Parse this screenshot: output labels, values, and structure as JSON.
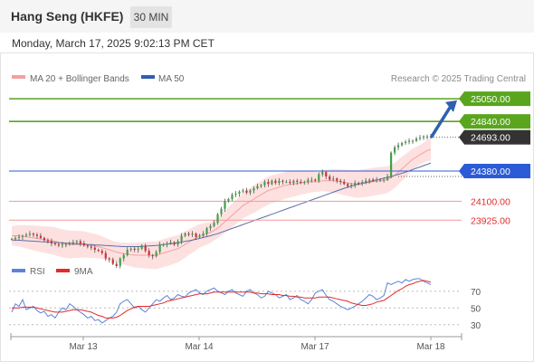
{
  "header": {
    "title": "Hang Seng (HKFE)",
    "timeframe": "30 MIN",
    "date": "Monday, March 17, 2025 9:02:13 PM CET"
  },
  "colors": {
    "support": "#f29a9a",
    "resistance": "#5aa51e",
    "pivot": "#2b5bd7",
    "price_tag": "#333333",
    "bollinger_fill": "#fde1e1",
    "ma20": "#f3a0a0",
    "ma50": "#5a6fa8",
    "candle_up": "#43a047",
    "candle_down": "#d32f2f",
    "rsi": "#5b84d9",
    "rsi_ma": "#e32b2b",
    "arrow": "#2e60ad"
  },
  "chart_data": [
    {
      "type": "candlestick",
      "title": "Hang Seng (HKFE)",
      "timeframe": "30 MIN",
      "legend": [
        {
          "name": "MA 20 + Bollinger Bands",
          "color": "#f3a0a0"
        },
        {
          "name": "MA 50",
          "color": "#2e60ad"
        }
      ],
      "credit": "Research © 2025 Trading Central",
      "x_ticks": [
        "Mar 13",
        "Mar 14",
        "Mar 17",
        "Mar 18"
      ],
      "ylim": [
        23600,
        25160
      ],
      "levels": [
        {
          "value": 25050,
          "label": "25050.00",
          "kind": "resistance"
        },
        {
          "value": 24840,
          "label": "24840.00",
          "kind": "resistance"
        },
        {
          "value": 24380,
          "label": "24380.00",
          "kind": "pivot"
        },
        {
          "value": 24100,
          "label": "24100.00",
          "kind": "support"
        },
        {
          "value": 23925,
          "label": "23925.00",
          "kind": "support"
        }
      ],
      "last_price": {
        "value": 24693,
        "label": "24693.00"
      },
      "forecast_arrow": {
        "from": 24700,
        "to": 25010,
        "direction": "up"
      },
      "close_series": [
        23750,
        23760,
        23770,
        23780,
        23790,
        23800,
        23790,
        23780,
        23760,
        23740,
        23730,
        23710,
        23700,
        23690,
        23700,
        23700,
        23710,
        23720,
        23730,
        23710,
        23690,
        23680,
        23670,
        23650,
        23640,
        23620,
        23570,
        23560,
        23520,
        23500,
        23570,
        23600,
        23650,
        23660,
        23650,
        23660,
        23690,
        23640,
        23600,
        23590,
        23630,
        23700,
        23700,
        23710,
        23720,
        23700,
        23730,
        23780,
        23800,
        23790,
        23800,
        23770,
        23780,
        23800,
        23850,
        23870,
        23900,
        23980,
        24030,
        24100,
        24120,
        24160,
        24170,
        24190,
        24200,
        24180,
        24200,
        24220,
        24240,
        24250,
        24280,
        24260,
        24290,
        24270,
        24290,
        24280,
        24280,
        24270,
        24290,
        24280,
        24270,
        24280,
        24300,
        24300,
        24290,
        24350,
        24370,
        24330,
        24300,
        24310,
        24290,
        24280,
        24260,
        24240,
        24250,
        24270,
        24260,
        24280,
        24290,
        24300,
        24290,
        24300,
        24300,
        24300,
        24330,
        24550,
        24600,
        24620,
        24640,
        24650,
        24660,
        24660,
        24680,
        24690,
        24700,
        24700,
        24693
      ],
      "ma20_series": [
        23780,
        23780,
        23780,
        23775,
        23770,
        23765,
        23760,
        23755,
        23750,
        23745,
        23740,
        23735,
        23730,
        23720,
        23710,
        23705,
        23700,
        23700,
        23700,
        23700,
        23700,
        23695,
        23690,
        23685,
        23680,
        23670,
        23660,
        23650,
        23640,
        23630,
        23620,
        23615,
        23610,
        23605,
        23600,
        23600,
        23600,
        23600,
        23600,
        23600,
        23600,
        23610,
        23620,
        23630,
        23640,
        23650,
        23660,
        23680,
        23700,
        23720,
        23740,
        23760,
        23780,
        23790,
        23800,
        23810,
        23830,
        23850,
        23880,
        23910,
        23940,
        23970,
        24000,
        24030,
        24060,
        24080,
        24100,
        24120,
        24140,
        24160,
        24180,
        24200,
        24210,
        24220,
        24230,
        24240,
        24250,
        24255,
        24260,
        24265,
        24270,
        24275,
        24280,
        24280,
        24280,
        24280,
        24290,
        24290,
        24290,
        24290,
        24285,
        24280,
        24275,
        24270,
        24265,
        24260,
        24260,
        24265,
        24270,
        24275,
        24280,
        24285,
        24290,
        24295,
        24300,
        24320,
        24340,
        24370,
        24400,
        24430,
        24460,
        24490,
        24510,
        24530,
        24550,
        24570,
        24580
      ],
      "ma50_series": [
        23740,
        23740,
        23738,
        23736,
        23734,
        23732,
        23730,
        23728,
        23726,
        23724,
        23722,
        23720,
        23718,
        23716,
        23714,
        23712,
        23710,
        23708,
        23706,
        23704,
        23702,
        23700,
        23698,
        23696,
        23694,
        23692,
        23690,
        23688,
        23686,
        23684,
        23682,
        23680,
        23680,
        23680,
        23680,
        23680,
        23682,
        23684,
        23686,
        23688,
        23690,
        23694,
        23698,
        23702,
        23706,
        23710,
        23716,
        23722,
        23728,
        23734,
        23740,
        23748,
        23756,
        23764,
        23772,
        23780,
        23790,
        23800,
        23812,
        23824,
        23836,
        23848,
        23860,
        23872,
        23884,
        23896,
        23908,
        23920,
        23932,
        23944,
        23956,
        23968,
        23980,
        23992,
        24004,
        24016,
        24028,
        24040,
        24052,
        24064,
        24076,
        24088,
        24100,
        24112,
        24124,
        24136,
        24148,
        24160,
        24172,
        24184,
        24196,
        24208,
        24220,
        24230,
        24240,
        24250,
        24258,
        24266,
        24274,
        24282,
        24290,
        24298,
        24306,
        24314,
        24322,
        24330,
        24340,
        24350,
        24360,
        24370,
        24382,
        24394,
        24406,
        24418,
        24430,
        24442,
        24455
      ],
      "rsi": {
        "legend": [
          {
            "name": "RSI",
            "color": "#5b84d9"
          },
          {
            "name": "9MA",
            "color": "#e32b2b"
          }
        ],
        "ylim": [
          20,
          85
        ],
        "y_ticks": [
          "70",
          "50",
          "30"
        ],
        "rsi_series": [
          45,
          55,
          52,
          60,
          48,
          50,
          52,
          47,
          44,
          46,
          40,
          42,
          38,
          45,
          50,
          48,
          55,
          52,
          48,
          45,
          42,
          38,
          40,
          35,
          36,
          32,
          35,
          38,
          40,
          45,
          55,
          58,
          60,
          55,
          50,
          52,
          48,
          45,
          50,
          55,
          60,
          58,
          62,
          65,
          60,
          62,
          66,
          64,
          63,
          68,
          70,
          72,
          68,
          66,
          70,
          72,
          74,
          70,
          68,
          66,
          70,
          72,
          68,
          66,
          64,
          70,
          72,
          68,
          66,
          62,
          64,
          70,
          68,
          66,
          62,
          64,
          66,
          60,
          62,
          65,
          60,
          58,
          55,
          60,
          68,
          70,
          72,
          65,
          60,
          58,
          55,
          52,
          50,
          48,
          50,
          52,
          55,
          58,
          62,
          66,
          64,
          60,
          62,
          65,
          80,
          78,
          80,
          82,
          80,
          84,
          82,
          84,
          85,
          85,
          82,
          80,
          78
        ],
        "ma_series": [
          50,
          50,
          50,
          51,
          51,
          51,
          51,
          50,
          49,
          48,
          47,
          46,
          45,
          45,
          45,
          46,
          47,
          48,
          48,
          48,
          47,
          46,
          45,
          43,
          41,
          40,
          38,
          38,
          38,
          39,
          41,
          44,
          47,
          49,
          51,
          52,
          52,
          52,
          52,
          53,
          54,
          55,
          56,
          58,
          59,
          60,
          61,
          62,
          63,
          64,
          65,
          66,
          67,
          67,
          67,
          68,
          69,
          69,
          69,
          69,
          69,
          69,
          69,
          69,
          69,
          69,
          69,
          68,
          68,
          67,
          67,
          67,
          66,
          66,
          66,
          65,
          65,
          64,
          64,
          63,
          63,
          62,
          62,
          62,
          62,
          63,
          63,
          63,
          63,
          62,
          61,
          60,
          59,
          58,
          56,
          55,
          54,
          53,
          53,
          54,
          55,
          57,
          58,
          59,
          62,
          65,
          68,
          71,
          73,
          76,
          78,
          79,
          81,
          82,
          83,
          82,
          81
        ]
      }
    }
  ]
}
